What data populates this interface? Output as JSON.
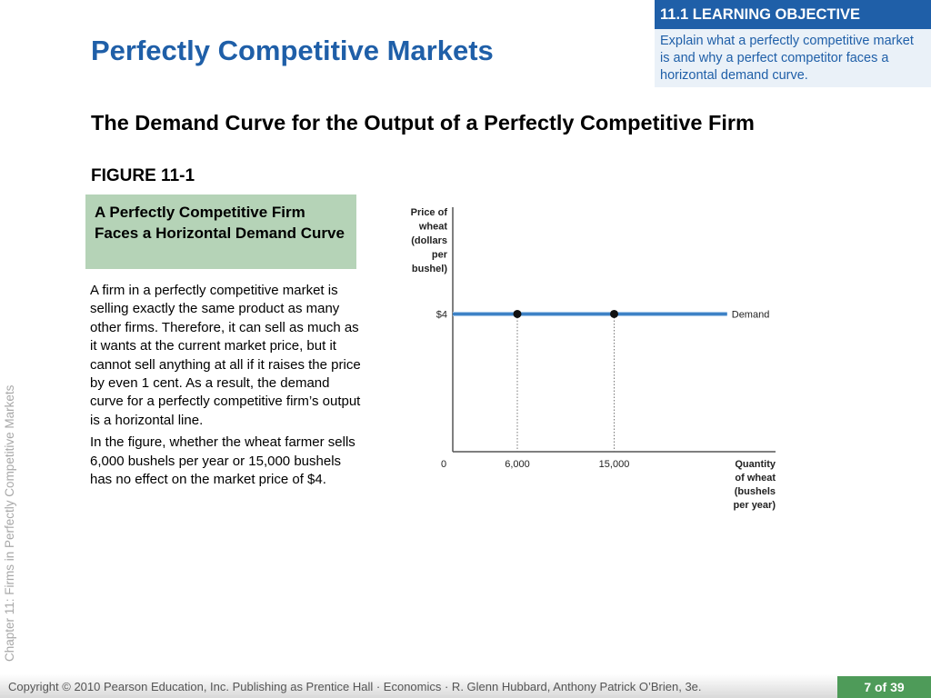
{
  "title": "Perfectly Competitive Markets",
  "learning_objective": {
    "header": "11.1  LEARNING OBJECTIVE",
    "text": "Explain what a perfectly competitive market is and why a perfect competitor faces a horizontal demand curve."
  },
  "subtitle": "The Demand Curve for the Output of a Perfectly Competitive Firm",
  "figure_label": "FIGURE 11-1",
  "figure_caption": "A Perfectly Competitive Firm Faces a  Horizontal Demand Curve",
  "body_paragraphs": [
    "A firm in a perfectly competitive market is selling exactly the same product as many other firms. Therefore, it can sell as much as it wants at the current market price, but it cannot sell anything at all if it raises the price by even 1 cent. As a result, the demand curve for a perfectly competitive firm’s output is a horizontal line.",
    "In the figure, whether the wheat farmer sells 6,000 bushels per year or 15,000 bushels has no effect on the market price of $4."
  ],
  "side_label": "Chapter 11:  Firms in Perfectly Competitive Markets",
  "footer": {
    "copyright": "Copyright © 2010 Pearson Education, Inc. Publishing as Prentice Hall · Economics · R. Glenn Hubbard, Anthony Patrick O’Brien, 3e.",
    "page": "7 of 39"
  },
  "chart_data": {
    "type": "line",
    "ylabel": [
      "Price of",
      "wheat",
      "(dollars",
      "per",
      "bushel)"
    ],
    "xlabel": [
      "Quantity",
      "of wheat",
      "(bushels",
      "per year)"
    ],
    "origin_label": "0",
    "x_ticks": [
      {
        "value": 6000,
        "label": "6,000"
      },
      {
        "value": 15000,
        "label": "15,000"
      }
    ],
    "y_ticks": [
      {
        "value": 4,
        "label": "$4"
      }
    ],
    "xlim": [
      0,
      30000
    ],
    "ylim": [
      0,
      7.1
    ],
    "series": [
      {
        "name": "Demand",
        "x": [
          0,
          25500
        ],
        "y": [
          4,
          4
        ],
        "color": "#2f78c0"
      }
    ],
    "points": [
      {
        "x": 6000,
        "y": 4
      },
      {
        "x": 15000,
        "y": 4
      }
    ]
  }
}
